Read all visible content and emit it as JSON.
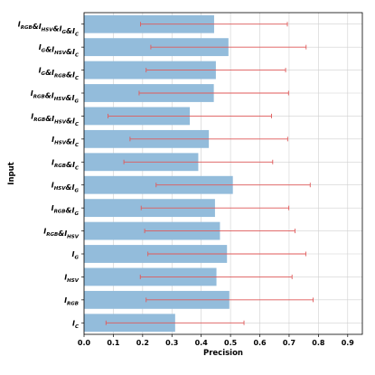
{
  "chart_data": {
    "type": "bar",
    "orientation": "horizontal",
    "xlabel": "Precision",
    "ylabel": "Input",
    "xlim": [
      0.0,
      0.95
    ],
    "xticks": [
      "0.0",
      "0.1",
      "0.2",
      "0.3",
      "0.4",
      "0.5",
      "0.6",
      "0.7",
      "0.8",
      "0.9"
    ],
    "grid": true,
    "colors": {
      "bar": "#93bcdb",
      "error": "#e05a5a"
    },
    "categories": [
      {
        "parts": [
          [
            "I",
            "RGB"
          ],
          [
            "I",
            "HSV"
          ],
          [
            "I",
            "G"
          ],
          [
            "I",
            "C"
          ]
        ]
      },
      {
        "parts": [
          [
            "I",
            "G"
          ],
          [
            "I",
            "HSV"
          ],
          [
            "I",
            "C"
          ]
        ]
      },
      {
        "parts": [
          [
            "I",
            "G"
          ],
          [
            "I",
            "RGB"
          ],
          [
            "I",
            "C"
          ]
        ]
      },
      {
        "parts": [
          [
            "I",
            "RGB"
          ],
          [
            "I",
            "HSV"
          ],
          [
            "I",
            "G"
          ]
        ]
      },
      {
        "parts": [
          [
            "I",
            "RGB"
          ],
          [
            "I",
            "HSV"
          ],
          [
            "I",
            "C"
          ]
        ]
      },
      {
        "parts": [
          [
            "I",
            "HSV"
          ],
          [
            "I",
            "C"
          ]
        ]
      },
      {
        "parts": [
          [
            "I",
            "RGB"
          ],
          [
            "I",
            "C"
          ]
        ]
      },
      {
        "parts": [
          [
            "I",
            "HSV"
          ],
          [
            "I",
            "G"
          ]
        ]
      },
      {
        "parts": [
          [
            "I",
            "RGB"
          ],
          [
            "I",
            "G"
          ]
        ]
      },
      {
        "parts": [
          [
            "I",
            "RGB"
          ],
          [
            "I",
            "HSV"
          ]
        ]
      },
      {
        "parts": [
          [
            "I",
            "G"
          ]
        ]
      },
      {
        "parts": [
          [
            "I",
            "HSV"
          ]
        ]
      },
      {
        "parts": [
          [
            "I",
            "RGB"
          ]
        ]
      },
      {
        "parts": [
          [
            "I",
            "C"
          ]
        ]
      }
    ],
    "values": [
      0.444,
      0.493,
      0.45,
      0.443,
      0.361,
      0.426,
      0.39,
      0.508,
      0.447,
      0.464,
      0.488,
      0.452,
      0.496,
      0.311
    ],
    "error_low": [
      0.193,
      0.228,
      0.212,
      0.188,
      0.082,
      0.157,
      0.136,
      0.246,
      0.195,
      0.207,
      0.218,
      0.192,
      0.212,
      0.075
    ],
    "error_high": [
      0.694,
      0.758,
      0.688,
      0.698,
      0.64,
      0.695,
      0.644,
      0.772,
      0.699,
      0.72,
      0.757,
      0.71,
      0.782,
      0.546
    ]
  }
}
